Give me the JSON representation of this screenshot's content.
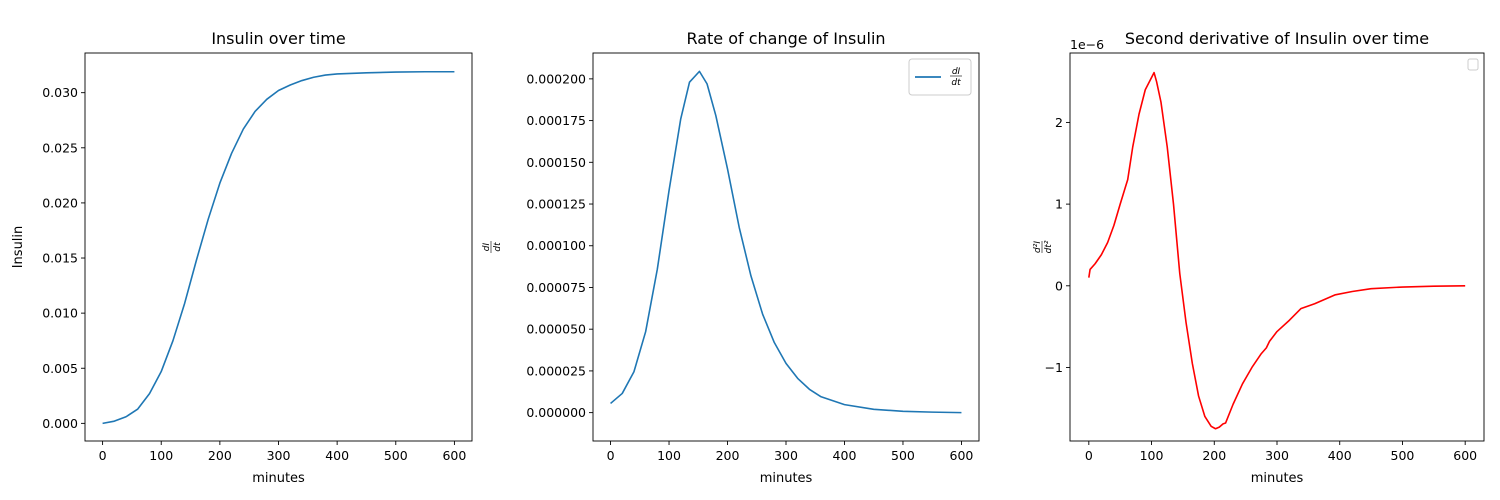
{
  "chart_data": [
    {
      "type": "line",
      "title": "Insulin over time",
      "xlabel": "minutes",
      "ylabel": "Insulin",
      "xlim": [
        -30,
        630
      ],
      "ylim": [
        -0.0016,
        0.0336
      ],
      "x_ticks": [
        0,
        100,
        200,
        300,
        400,
        500,
        600
      ],
      "y_ticks": [
        0.0,
        0.005,
        0.01,
        0.015,
        0.02,
        0.025,
        0.03
      ],
      "y_tick_labels": [
        "0.000",
        "0.005",
        "0.010",
        "0.015",
        "0.020",
        "0.025",
        "0.030"
      ],
      "legend": null,
      "series": [
        {
          "color": "#1f77b4",
          "x": [
            0,
            20,
            40,
            60,
            80,
            100,
            120,
            140,
            160,
            180,
            200,
            220,
            240,
            260,
            280,
            300,
            320,
            340,
            360,
            380,
            400,
            450,
            500,
            550,
            600
          ],
          "y": [
            0.0,
            0.0002,
            0.0006,
            0.0013,
            0.0027,
            0.0047,
            0.0075,
            0.0109,
            0.0148,
            0.0185,
            0.0218,
            0.0245,
            0.0267,
            0.0283,
            0.0294,
            0.0302,
            0.0307,
            0.0311,
            0.0314,
            0.0316,
            0.0317,
            0.0318,
            0.03187,
            0.0319,
            0.0319
          ]
        }
      ]
    },
    {
      "type": "line",
      "title": "Rate of change of Insulin",
      "xlabel": "minutes",
      "ylabel": "dI/dt",
      "xlim": [
        -30,
        630
      ],
      "ylim": [
        -1.7e-05,
        0.0002155
      ],
      "x_ticks": [
        0,
        100,
        200,
        300,
        400,
        500,
        600
      ],
      "y_ticks": [
        0.0,
        2.5e-05,
        5e-05,
        7.5e-05,
        0.0001,
        0.000125,
        0.00015,
        0.000175,
        0.0002
      ],
      "y_tick_labels": [
        "0.000000",
        "0.000025",
        "0.000050",
        "0.000075",
        "0.000100",
        "0.000125",
        "0.000150",
        "0.000175",
        "0.000200"
      ],
      "legend": {
        "position": "upper right",
        "entries": [
          {
            "label": "dI/dt",
            "numerator": "dI",
            "denominator": "dt"
          }
        ]
      },
      "series": [
        {
          "name": "dI/dt",
          "color": "#1f77b4",
          "x": [
            0,
            20,
            40,
            60,
            80,
            100,
            120,
            135,
            152,
            165,
            180,
            200,
            220,
            240,
            260,
            280,
            300,
            320,
            340,
            360,
            400,
            450,
            500,
            550,
            600
          ],
          "y": [
            5.5e-06,
            1.15e-05,
            2.45e-05,
            4.85e-05,
            8.6e-05,
            0.000133,
            0.000176,
            0.000198,
            0.0002045,
            0.000197,
            0.000178,
            0.000146,
            0.000111,
            8.2e-05,
            5.9e-05,
            4.2e-05,
            2.95e-05,
            2.05e-05,
            1.4e-05,
            9.5e-06,
            4.8e-06,
            2e-06,
            8e-07,
            3e-07,
            0.0
          ]
        }
      ]
    },
    {
      "type": "line",
      "title": "Second derivative of Insulin over time",
      "xlabel": "minutes",
      "ylabel": "d²I/dt²",
      "y_offset_label": "1e−6",
      "xlim": [
        -30,
        630
      ],
      "ylim": [
        -1.9,
        2.85
      ],
      "x_ticks": [
        0,
        100,
        200,
        300,
        400,
        500,
        600
      ],
      "y_ticks": [
        -1,
        0,
        1,
        2
      ],
      "y_tick_labels": [
        "−1",
        "0",
        "1",
        "2"
      ],
      "legend": {
        "position": "upper right",
        "entries": []
      },
      "series": [
        {
          "color": "#ff0000",
          "x": [
            0,
            2,
            10,
            20,
            30,
            40,
            50,
            58,
            62,
            70,
            80,
            90,
            100,
            104,
            108,
            115,
            125,
            135,
            145,
            155,
            165,
            175,
            185,
            195,
            202,
            208,
            214,
            218,
            230,
            245,
            260,
            275,
            283,
            288,
            300,
            320,
            338,
            360,
            393,
            420,
            450,
            500,
            550,
            600
          ],
          "y": [
            0.1,
            0.2,
            0.27,
            0.38,
            0.53,
            0.74,
            1.0,
            1.2,
            1.3,
            1.7,
            2.1,
            2.4,
            2.55,
            2.61,
            2.5,
            2.25,
            1.7,
            1.0,
            0.15,
            -0.45,
            -0.95,
            -1.35,
            -1.6,
            -1.72,
            -1.75,
            -1.73,
            -1.69,
            -1.68,
            -1.45,
            -1.2,
            -1.0,
            -0.83,
            -0.76,
            -0.68,
            -0.56,
            -0.42,
            -0.28,
            -0.22,
            -0.11,
            -0.07,
            -0.035,
            -0.015,
            -0.005,
            0.0
          ]
        }
      ]
    }
  ]
}
